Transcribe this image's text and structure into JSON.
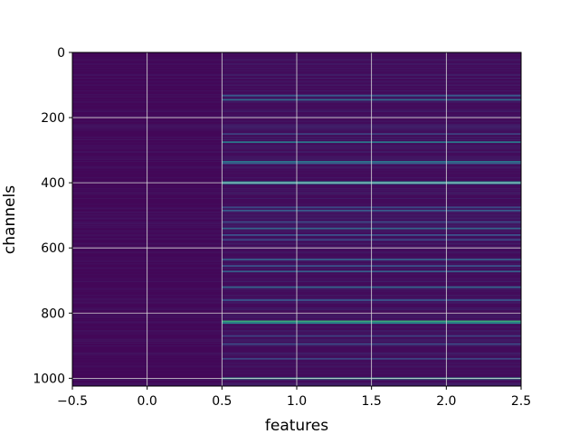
{
  "chart_data": {
    "type": "heatmap",
    "title": "",
    "xlabel": "features",
    "ylabel": "channels",
    "xlim": [
      -0.5,
      2.5
    ],
    "ylim": [
      1024,
      0
    ],
    "y_inverted": true,
    "colormap": "viridis",
    "grid": true,
    "x_ticks": [
      -0.5,
      0.0,
      0.5,
      1.0,
      1.5,
      2.0,
      2.5
    ],
    "x_tick_labels": [
      "−0.5",
      "0.0",
      "0.5",
      "1.0",
      "1.5",
      "2.0",
      "2.5"
    ],
    "y_ticks": [
      0,
      200,
      400,
      600,
      800,
      1000
    ],
    "y_tick_labels": [
      "0",
      "200",
      "400",
      "600",
      "800",
      "1000"
    ],
    "columns": [
      0,
      1,
      2
    ],
    "n_channels": 1024,
    "base_color": "#440154",
    "feature_0_level": 0.02,
    "notable_rows": [
      {
        "channel": 132,
        "level": 0.28
      },
      {
        "channel": 145,
        "level": 0.35
      },
      {
        "channel": 250,
        "level": 0.2
      },
      {
        "channel": 275,
        "level": 0.4
      },
      {
        "channel": 335,
        "level": 0.38
      },
      {
        "channel": 340,
        "level": 0.3
      },
      {
        "channel": 398,
        "level": 0.5
      },
      {
        "channel": 402,
        "level": 0.4
      },
      {
        "channel": 475,
        "level": 0.22
      },
      {
        "channel": 485,
        "level": 0.28
      },
      {
        "channel": 520,
        "level": 0.22
      },
      {
        "channel": 540,
        "level": 0.32
      },
      {
        "channel": 560,
        "level": 0.24
      },
      {
        "channel": 575,
        "level": 0.22
      },
      {
        "channel": 635,
        "level": 0.3
      },
      {
        "channel": 655,
        "level": 0.25
      },
      {
        "channel": 672,
        "level": 0.3
      },
      {
        "channel": 720,
        "level": 0.32
      },
      {
        "channel": 760,
        "level": 0.26
      },
      {
        "channel": 825,
        "level": 0.6
      },
      {
        "channel": 830,
        "level": 0.45
      },
      {
        "channel": 870,
        "level": 0.2
      },
      {
        "channel": 895,
        "level": 0.22
      },
      {
        "channel": 940,
        "level": 0.2
      },
      {
        "channel": 1000,
        "level": 0.55
      }
    ],
    "colors": {
      "grid": "#d9d9d9",
      "axis": "#000000"
    }
  }
}
